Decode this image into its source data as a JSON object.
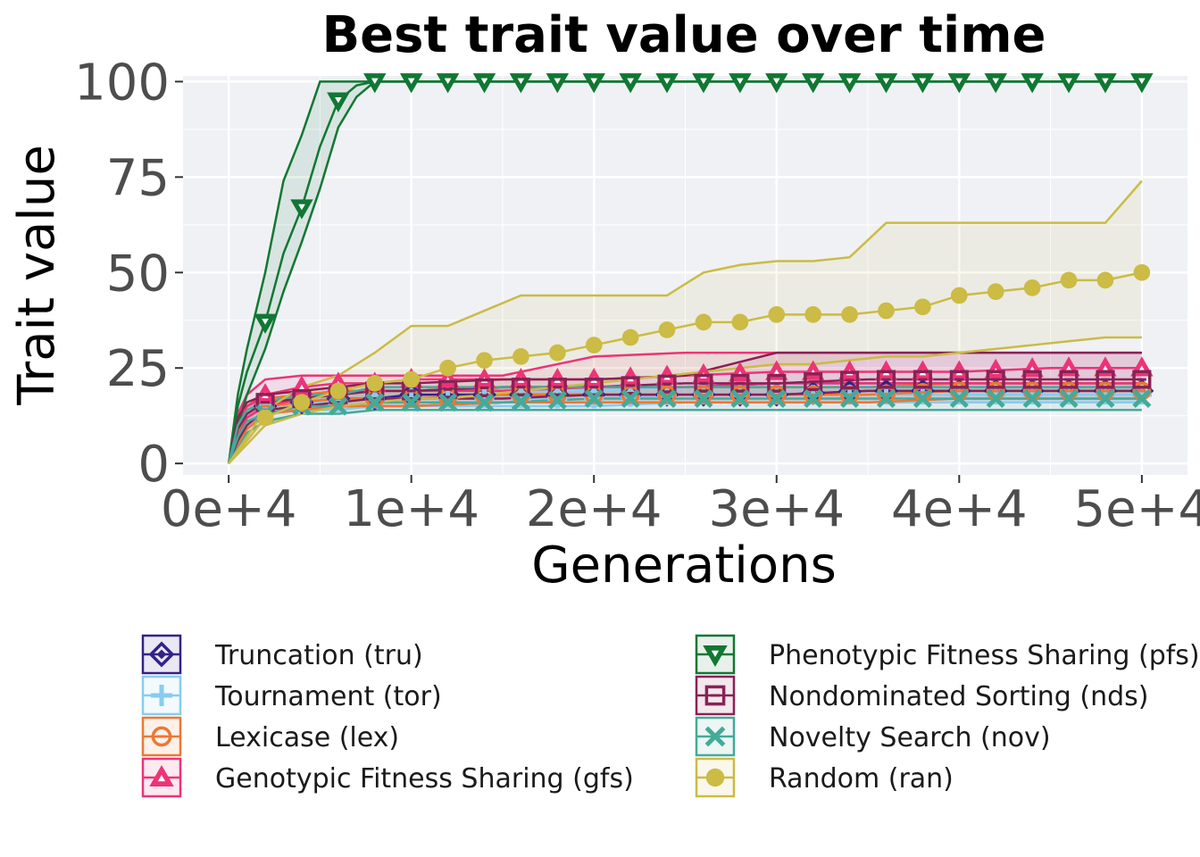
{
  "chart_data": {
    "type": "line",
    "title": "Best trait value over time",
    "xlabel": "Generations",
    "ylabel": "Trait value",
    "xlim": [
      -2500,
      52500
    ],
    "ylim": [
      -3,
      101.5
    ],
    "x_ticks": [
      0,
      10000,
      20000,
      30000,
      40000,
      50000
    ],
    "x_tick_labels": [
      "0e+4",
      "1e+4",
      "2e+4",
      "3e+4",
      "4e+4",
      "5e+4"
    ],
    "y_ticks": [
      0,
      25,
      50,
      75,
      100
    ],
    "y_tick_labels": [
      "0",
      "25",
      "50",
      "75",
      "100"
    ],
    "grid": true,
    "legend_position": "bottom",
    "series": [
      {
        "name": "Truncation (tru)",
        "color": "#332288",
        "marker": "diamond",
        "x": [
          0,
          500,
          1000,
          2000,
          4000,
          6000,
          8000,
          10000,
          15000,
          20000,
          25000,
          30000,
          35000,
          40000,
          45000,
          50000
        ],
        "y": [
          0,
          8,
          12,
          15,
          16,
          17,
          17,
          18,
          18,
          18,
          18,
          18,
          19,
          19,
          19,
          19
        ],
        "lower": [
          0,
          5,
          9,
          13,
          14,
          15,
          15,
          15,
          16,
          16,
          16,
          16,
          16,
          16,
          16,
          16
        ],
        "upper": [
          0,
          11,
          15,
          17,
          18,
          18,
          19,
          19,
          20,
          20,
          20,
          21,
          21,
          21,
          21,
          21
        ]
      },
      {
        "name": "Tournament (tor)",
        "color": "#88CCEE",
        "marker": "plus",
        "x": [
          0,
          500,
          1000,
          2000,
          4000,
          6000,
          8000,
          10000,
          15000,
          20000,
          25000,
          30000,
          35000,
          40000,
          45000,
          50000
        ],
        "y": [
          0,
          8,
          12,
          15,
          16,
          16,
          17,
          17,
          17,
          17,
          18,
          18,
          18,
          18,
          18,
          18
        ],
        "lower": [
          0,
          5,
          9,
          13,
          14,
          14,
          15,
          15,
          15,
          15,
          16,
          16,
          16,
          16,
          16,
          16
        ],
        "upper": [
          0,
          11,
          15,
          17,
          18,
          18,
          19,
          19,
          19,
          19,
          20,
          20,
          20,
          20,
          20,
          20
        ]
      },
      {
        "name": "Lexicase (lex)",
        "color": "#EE7733",
        "marker": "circle-minus",
        "x": [
          0,
          500,
          1000,
          2000,
          4000,
          6000,
          8000,
          10000,
          15000,
          20000,
          25000,
          30000,
          35000,
          40000,
          45000,
          50000
        ],
        "y": [
          0,
          8,
          12,
          15,
          16,
          17,
          17,
          17,
          18,
          18,
          18,
          18,
          18,
          19,
          19,
          19
        ],
        "lower": [
          0,
          5,
          9,
          13,
          14,
          15,
          15,
          15,
          16,
          16,
          16,
          16,
          16,
          17,
          17,
          17
        ],
        "upper": [
          0,
          11,
          15,
          17,
          18,
          19,
          19,
          19,
          20,
          20,
          20,
          20,
          20,
          21,
          21,
          21
        ]
      },
      {
        "name": "Genotypic Fitness Sharing (gfs)",
        "color": "#EE3377",
        "marker": "triangle-up",
        "x": [
          0,
          500,
          1000,
          2000,
          4000,
          6000,
          8000,
          10000,
          15000,
          20000,
          25000,
          30000,
          35000,
          40000,
          45000,
          50000
        ],
        "y": [
          0,
          10,
          15,
          18,
          20,
          21,
          21,
          22,
          22,
          22,
          23,
          24,
          24,
          24,
          25,
          25
        ],
        "lower": [
          0,
          7,
          12,
          15,
          17,
          18,
          19,
          19,
          19,
          20,
          20,
          21,
          21,
          21,
          21,
          21
        ],
        "upper": [
          0,
          13,
          18,
          22,
          23,
          23,
          23,
          23,
          23,
          28,
          29,
          29,
          29,
          29,
          29,
          29
        ]
      },
      {
        "name": "Phenotypic Fitness Sharing (pfs)",
        "color": "#117733",
        "marker": "triangle-down",
        "x": [
          0,
          500,
          1000,
          2000,
          3000,
          4000,
          5000,
          6000,
          7000,
          8000,
          10000,
          20000,
          30000,
          40000,
          50000
        ],
        "y": [
          0,
          15,
          24,
          37,
          55,
          67,
          83,
          95,
          99,
          100,
          100,
          100,
          100,
          100,
          100
        ],
        "lower": [
          0,
          10,
          18,
          30,
          45,
          58,
          72,
          88,
          96,
          100,
          100,
          100,
          100,
          100,
          100
        ],
        "upper": [
          0,
          18,
          30,
          50,
          74,
          86,
          100,
          100,
          100,
          100,
          100,
          100,
          100,
          100,
          100
        ]
      },
      {
        "name": "Nondominated Sorting (nds)",
        "color": "#882255",
        "marker": "square-cross",
        "x": [
          0,
          500,
          1000,
          2000,
          4000,
          6000,
          8000,
          10000,
          15000,
          20000,
          25000,
          30000,
          35000,
          40000,
          45000,
          50000
        ],
        "y": [
          0,
          9,
          13,
          16,
          17,
          18,
          19,
          19,
          20,
          20,
          21,
          21,
          22,
          22,
          22,
          22
        ],
        "lower": [
          0,
          6,
          10,
          14,
          15,
          16,
          17,
          17,
          17,
          18,
          18,
          18,
          19,
          19,
          19,
          19
        ],
        "upper": [
          0,
          12,
          16,
          18,
          19,
          20,
          21,
          21,
          22,
          22,
          23,
          29,
          29,
          29,
          29,
          29
        ]
      },
      {
        "name": "Novelty Search (nov)",
        "color": "#44AA99",
        "marker": "cross",
        "x": [
          0,
          500,
          1000,
          2000,
          4000,
          6000,
          8000,
          10000,
          15000,
          20000,
          25000,
          30000,
          35000,
          40000,
          45000,
          50000
        ],
        "y": [
          0,
          7,
          11,
          13,
          15,
          15,
          16,
          16,
          16,
          17,
          17,
          17,
          17,
          17,
          17,
          17
        ],
        "lower": [
          0,
          4,
          8,
          11,
          13,
          13,
          14,
          14,
          14,
          14,
          14,
          14,
          14,
          14,
          14,
          14
        ],
        "upper": [
          0,
          10,
          14,
          16,
          18,
          18,
          20,
          20,
          20,
          20,
          20,
          20,
          20,
          20,
          20,
          20
        ]
      },
      {
        "name": "Random (ran)",
        "color": "#CCBB44",
        "marker": "circle",
        "x": [
          0,
          2000,
          4000,
          6000,
          8000,
          10000,
          12000,
          14000,
          16000,
          18000,
          20000,
          22000,
          24000,
          26000,
          28000,
          30000,
          32000,
          34000,
          36000,
          38000,
          40000,
          42000,
          44000,
          46000,
          48000,
          50000
        ],
        "y": [
          0,
          12,
          16,
          19,
          21,
          22,
          25,
          27,
          28,
          29,
          31,
          33,
          35,
          37,
          37,
          39,
          39,
          39,
          40,
          41,
          44,
          45,
          46,
          48,
          48,
          50
        ],
        "lower": [
          0,
          10,
          13,
          15,
          16,
          17,
          17,
          18,
          19,
          20,
          21,
          22,
          23,
          24,
          25,
          26,
          26,
          27,
          28,
          28,
          29,
          30,
          31,
          32,
          33,
          33
        ],
        "upper": [
          0,
          14,
          20,
          23,
          29,
          36,
          36,
          40,
          44,
          44,
          44,
          44,
          44,
          50,
          52,
          53,
          53,
          54,
          63,
          63,
          63,
          63,
          63,
          63,
          63,
          74
        ]
      }
    ]
  }
}
